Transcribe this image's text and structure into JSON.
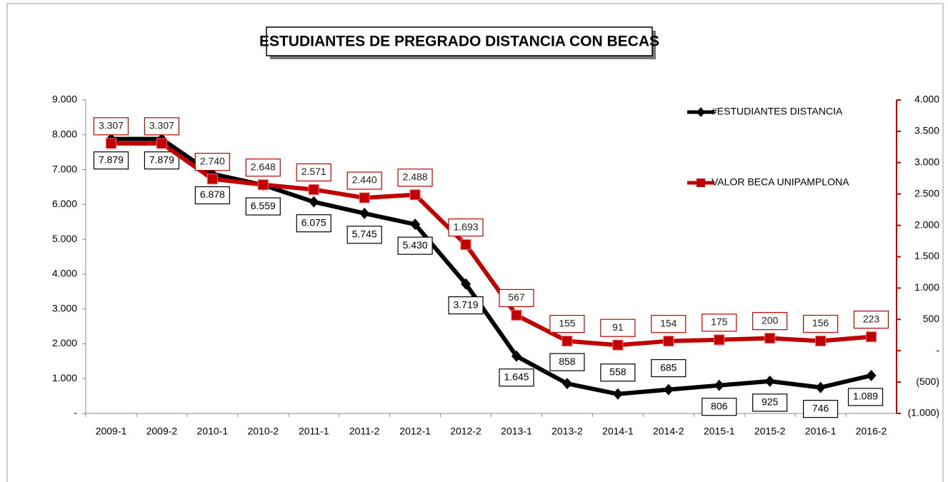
{
  "chart_data": {
    "type": "line",
    "title": "ESTUDIANTES DE PREGRADO DISTANCIA CON BECAS",
    "categories": [
      "2009-1",
      "2009-2",
      "2010-1",
      "2010-2",
      "2011-1",
      "2011-2",
      "2012-1",
      "2012-2",
      "2013-1",
      "2013-2",
      "2014-1",
      "2014-2",
      "2015-1",
      "2015-2",
      "2016-1",
      "2016-2"
    ],
    "series": [
      {
        "name": "#ESTUDIANTES DISTANCIA",
        "color": "#000000",
        "axis": "y",
        "values": [
          7879,
          7879,
          6878,
          6559,
          6075,
          5745,
          5430,
          3719,
          1645,
          858,
          558,
          685,
          806,
          925,
          746,
          1089
        ],
        "value_labels": [
          "7.879",
          "7.879",
          "6.878",
          "6.559",
          "6.075",
          "5.745",
          "5.430",
          "3.719",
          "1.645",
          "858",
          "558",
          "685",
          "806",
          "925",
          "746",
          "1.089"
        ]
      },
      {
        "name": "VALOR BECA UNIPAMPLONA",
        "color": "#c00000",
        "axis": "y2",
        "values": [
          3307,
          3307,
          2740,
          2648,
          2571,
          2440,
          2488,
          1693,
          567,
          155,
          91,
          154,
          175,
          200,
          156,
          223
        ],
        "value_labels": [
          "3.307",
          "3.307",
          "2.740",
          "2.648",
          "2.571",
          "2.440",
          "2.488",
          "1.693",
          "567",
          "155",
          "91",
          "154",
          "175",
          "200",
          "156",
          "223"
        ]
      }
    ],
    "ylim": [
      0,
      9000
    ],
    "yticks": [
      {
        "value": 0,
        "label": "-"
      },
      {
        "value": 1000,
        "label": "1.000"
      },
      {
        "value": 2000,
        "label": "2.000"
      },
      {
        "value": 3000,
        "label": "3.000"
      },
      {
        "value": 4000,
        "label": "4.000"
      },
      {
        "value": 5000,
        "label": "5.000"
      },
      {
        "value": 6000,
        "label": "6.000"
      },
      {
        "value": 7000,
        "label": "7.000"
      },
      {
        "value": 8000,
        "label": "8.000"
      },
      {
        "value": 9000,
        "label": "9.000"
      }
    ],
    "y2lim": [
      -1000,
      4000
    ],
    "y2ticks": [
      {
        "value": -1000,
        "label": "(1.000)"
      },
      {
        "value": -500,
        "label": "(500)"
      },
      {
        "value": 0,
        "label": "-"
      },
      500,
      {
        "value": 1000,
        "label": "1.000"
      },
      {
        "value": 1500,
        "label": "1.500"
      },
      {
        "value": 2000,
        "label": "2.000"
      },
      {
        "value": 2500,
        "label": "2.500"
      },
      {
        "value": 3000,
        "label": "3.000"
      },
      {
        "value": 3500,
        "label": "3.500"
      },
      {
        "value": 4000,
        "label": "4.000"
      }
    ],
    "grid": false,
    "legend": "right"
  }
}
